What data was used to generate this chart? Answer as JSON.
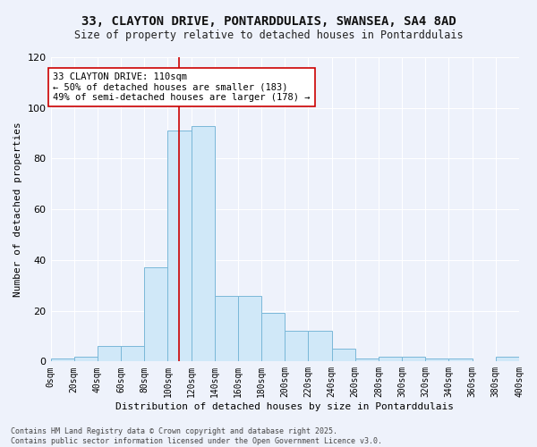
{
  "title_line1": "33, CLAYTON DRIVE, PONTARDDULAIS, SWANSEA, SA4 8AD",
  "title_line2": "Size of property relative to detached houses in Pontarddulais",
  "xlabel": "Distribution of detached houses by size in Pontarddulais",
  "ylabel": "Number of detached properties",
  "bin_edges": [
    0,
    20,
    40,
    60,
    80,
    100,
    120,
    140,
    160,
    180,
    200,
    220,
    240,
    260,
    280,
    300,
    320,
    340,
    360,
    380,
    400
  ],
  "counts": [
    1,
    2,
    6,
    6,
    37,
    91,
    93,
    26,
    26,
    19,
    12,
    12,
    5,
    1,
    2,
    2,
    1,
    1,
    0,
    2
  ],
  "bar_facecolor": "#d0e8f8",
  "bar_edgecolor": "#7ab8d8",
  "vline_x": 110,
  "vline_color": "#cc0000",
  "annotation_text": "33 CLAYTON DRIVE: 110sqm\n← 50% of detached houses are smaller (183)\n49% of semi-detached houses are larger (178) →",
  "annotation_box_edgecolor": "#cc0000",
  "annotation_box_facecolor": "white",
  "ylim": [
    0,
    120
  ],
  "yticks": [
    0,
    20,
    40,
    60,
    80,
    100,
    120
  ],
  "footnote_line1": "Contains HM Land Registry data © Crown copyright and database right 2025.",
  "footnote_line2": "Contains public sector information licensed under the Open Government Licence v3.0.",
  "bg_color": "#eef2fb",
  "plot_bg_color": "#eef2fb",
  "title_fontsize": 10,
  "subtitle_fontsize": 8.5,
  "xlabel_fontsize": 8,
  "ylabel_fontsize": 8,
  "xtick_fontsize": 7,
  "ytick_fontsize": 8,
  "annot_fontsize": 7.5,
  "footnote_fontsize": 6
}
